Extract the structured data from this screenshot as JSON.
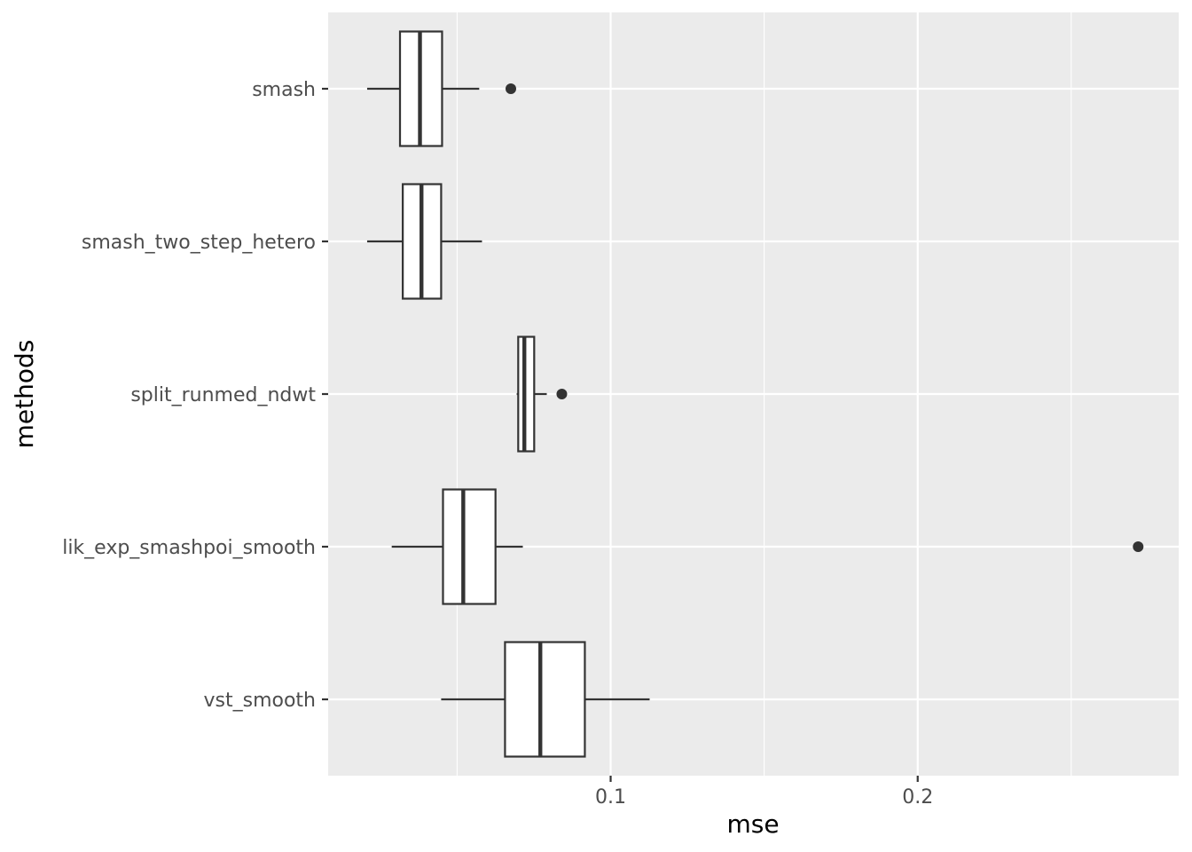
{
  "chart_data": {
    "type": "boxplot",
    "orientation": "horizontal",
    "title": "",
    "xlabel": "mse",
    "ylabel": "methods",
    "xlim": [
      0.008,
      0.285
    ],
    "x_ticks": [
      0.1,
      0.2
    ],
    "x_tick_labels": [
      "0.1",
      "0.2"
    ],
    "grid": true,
    "colors": {
      "panel_background": "#ebebeb",
      "grid_line": "#ffffff",
      "box_fill": "#ffffff",
      "box_stroke": "#333333",
      "outlier": "#333333",
      "tick_text": "#4d4d4d"
    },
    "categories": [
      "smash",
      "smash_two_step_hetero",
      "split_runmed_ndwt",
      "lik_exp_smashpoi_smooth",
      "vst_smooth"
    ],
    "boxes": [
      {
        "category": "smash",
        "whisker_low": 0.0207,
        "q1": 0.0314,
        "median": 0.0379,
        "q3": 0.0451,
        "whisker_high": 0.0572,
        "outliers": [
          0.0675
        ]
      },
      {
        "category": "smash_two_step_hetero",
        "whisker_low": 0.0207,
        "q1": 0.0323,
        "median": 0.0384,
        "q3": 0.0448,
        "whisker_high": 0.0581,
        "outliers": []
      },
      {
        "category": "split_runmed_ndwt",
        "whisker_low": 0.0694,
        "q1": 0.0699,
        "median": 0.0719,
        "q3": 0.0751,
        "whisker_high": 0.0792,
        "outliers": [
          0.0841
        ]
      },
      {
        "category": "lik_exp_smashpoi_smooth",
        "whisker_low": 0.0287,
        "q1": 0.0454,
        "median": 0.052,
        "q3": 0.0625,
        "whisker_high": 0.0714,
        "outliers": [
          0.2718
        ]
      },
      {
        "category": "vst_smooth",
        "whisker_low": 0.0448,
        "q1": 0.0656,
        "median": 0.0771,
        "q3": 0.0916,
        "whisker_high": 0.1127,
        "outliers": []
      }
    ]
  }
}
